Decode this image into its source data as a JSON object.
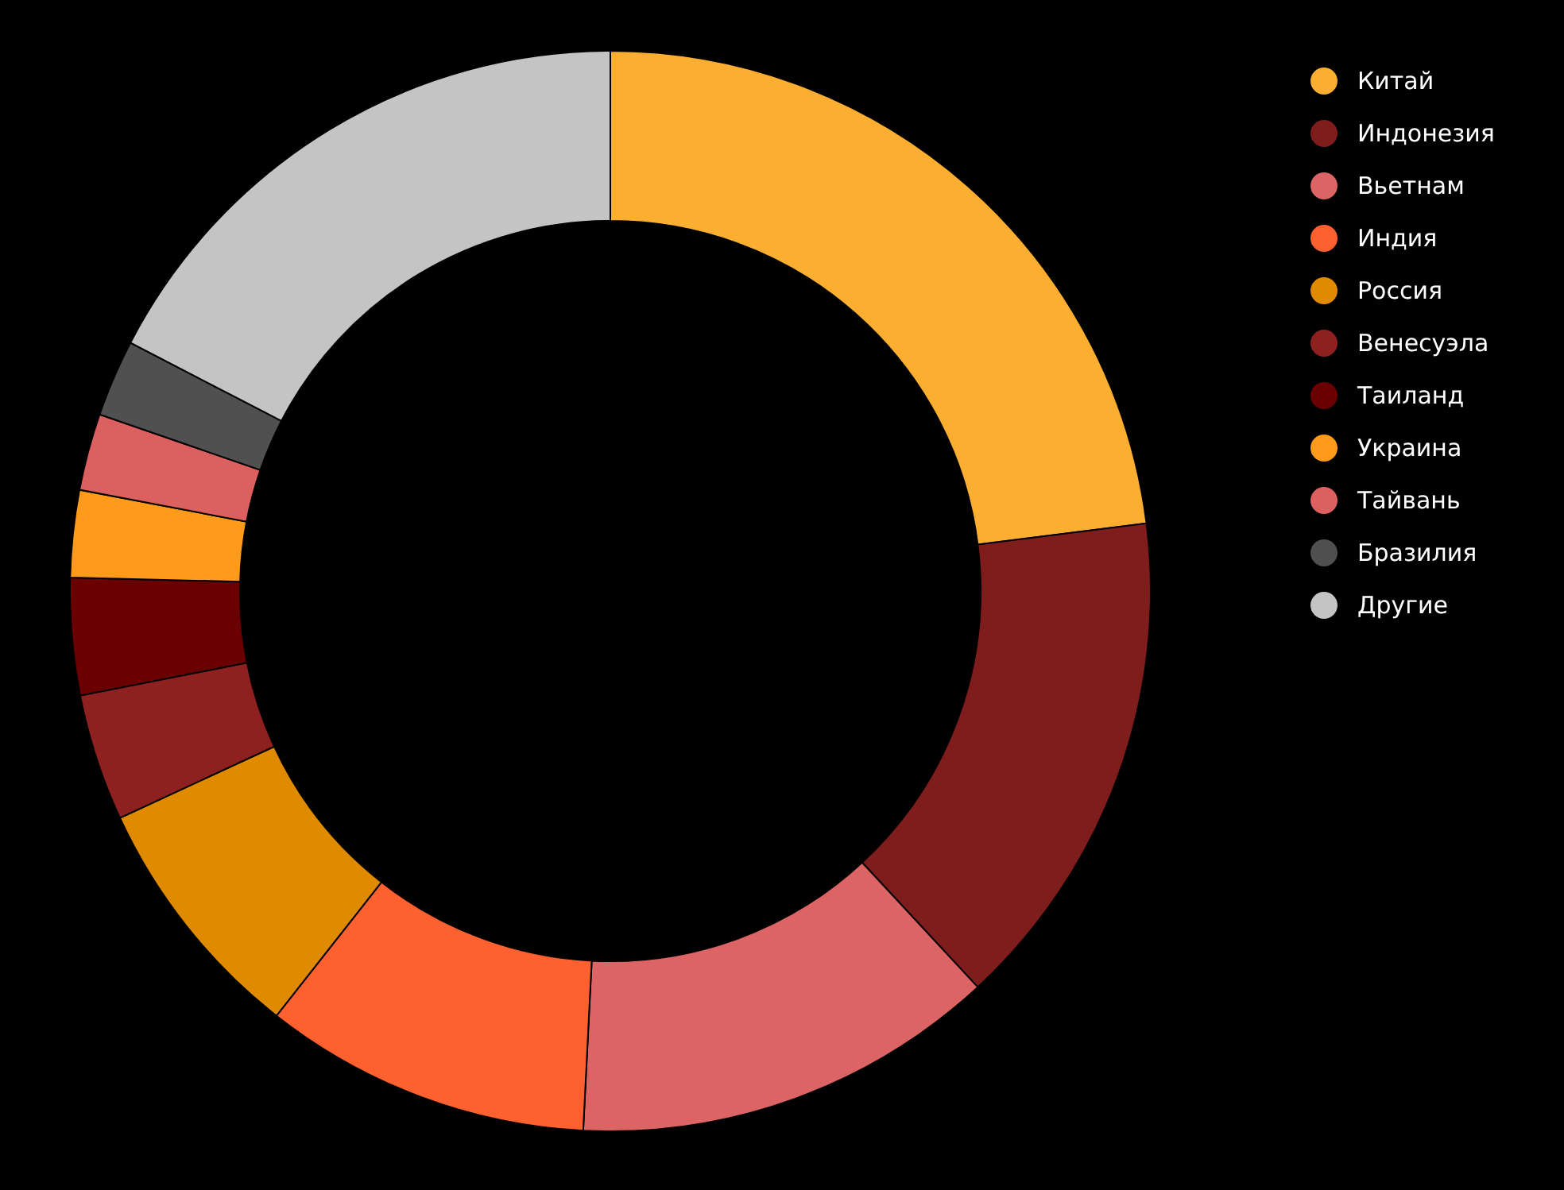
{
  "chart_data": {
    "type": "donut",
    "categories": [
      "Китай",
      "Индонезия",
      "Вьетнам",
      "Индия",
      "Россия",
      "Венесуэла",
      "Таиланд",
      "Украина",
      "Тайвань",
      "Бразилия",
      "Другие"
    ],
    "values": [
      23.0,
      15.1,
      12.7,
      9.8,
      7.5,
      3.8,
      3.5,
      2.6,
      2.3,
      2.3,
      17.4
    ],
    "colors": [
      "#fbae30",
      "#7f1d1d",
      "#dc6464",
      "#ff6030",
      "#e08a00",
      "#8e2020",
      "#6b0000",
      "#ff9a1a",
      "#dc6060",
      "#505050",
      "#c4c4c4"
    ],
    "legend": "top right"
  }
}
